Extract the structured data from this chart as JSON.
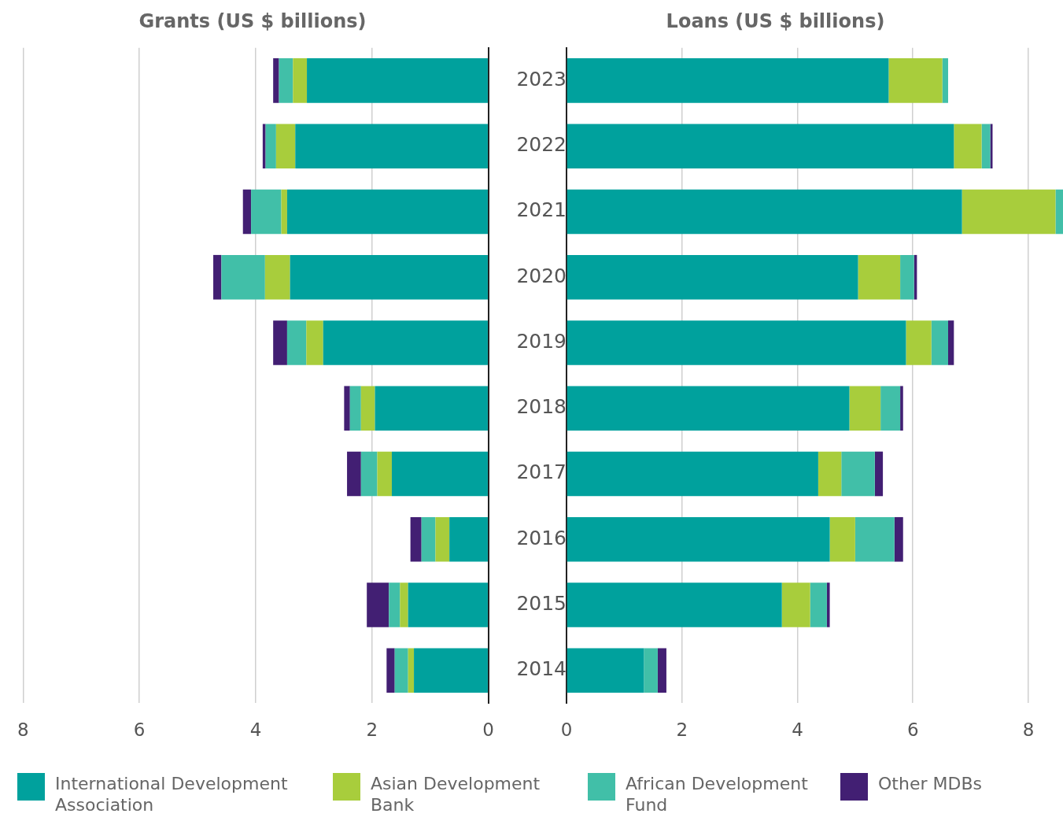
{
  "chart_data": [
    {
      "type": "bar",
      "orientation": "horizontal",
      "stacked": true,
      "title": "Grants (US $ billions)",
      "categories": [
        "2023",
        "2022",
        "2021",
        "2020",
        "2019",
        "2018",
        "2017",
        "2016",
        "2015",
        "2014"
      ],
      "xlim": [
        8,
        0
      ],
      "xticks": [
        8,
        6,
        4,
        2,
        0
      ],
      "tick_labels": "x",
      "grid": "x",
      "legend": "bottom",
      "series": [
        {
          "name": "International Development Association",
          "color": "#00a19d",
          "values": [
            3.12,
            3.32,
            3.46,
            3.41,
            2.84,
            1.95,
            1.66,
            0.67,
            1.38,
            1.28
          ]
        },
        {
          "name": "Asian Development Bank",
          "color": "#a8cd3c",
          "values": [
            0.24,
            0.33,
            0.1,
            0.43,
            0.29,
            0.24,
            0.25,
            0.24,
            0.14,
            0.1
          ]
        },
        {
          "name": "African Development Fund",
          "color": "#41bfa8",
          "values": [
            0.24,
            0.18,
            0.52,
            0.75,
            0.33,
            0.19,
            0.28,
            0.24,
            0.19,
            0.23
          ]
        },
        {
          "name": "Other MDBs",
          "color": "#421f73",
          "values": [
            0.1,
            0.05,
            0.14,
            0.14,
            0.24,
            0.1,
            0.24,
            0.19,
            0.38,
            0.14
          ]
        }
      ]
    },
    {
      "type": "bar",
      "orientation": "horizontal",
      "stacked": true,
      "title": "Loans (US $ billions)",
      "categories": [
        "2023",
        "2022",
        "2021",
        "2020",
        "2019",
        "2018",
        "2017",
        "2016",
        "2015",
        "2014"
      ],
      "xlim": [
        0,
        8.6
      ],
      "xticks": [
        0,
        2,
        4,
        6,
        8
      ],
      "grid": "x",
      "series": [
        {
          "color": "#00a19d",
          "values": [
            5.58,
            6.71,
            6.85,
            5.05,
            5.88,
            4.9,
            4.36,
            4.56,
            3.73,
            1.34
          ]
        },
        {
          "color": "#a8cd3c",
          "values": [
            0.93,
            0.48,
            1.62,
            0.73,
            0.44,
            0.54,
            0.4,
            0.44,
            0.49,
            0
          ]
        },
        {
          "color": "#41bfa8",
          "values": [
            0.1,
            0.15,
            0.13,
            0.24,
            0.29,
            0.34,
            0.58,
            0.68,
            0.29,
            0.24
          ]
        },
        {
          "color": "#421f73",
          "values": [
            0,
            0.04,
            0,
            0.05,
            0.1,
            0.05,
            0.14,
            0.15,
            0.05,
            0.15
          ]
        }
      ]
    }
  ]
}
